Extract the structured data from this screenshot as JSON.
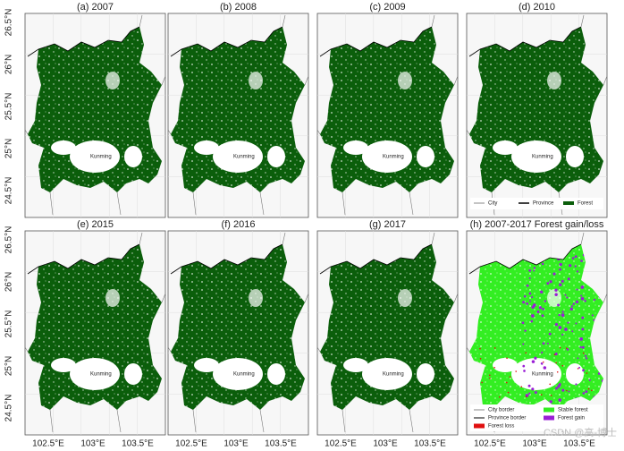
{
  "panels": [
    {
      "title": "(a) 2007"
    },
    {
      "title": "(b) 2008"
    },
    {
      "title": "(c) 2009"
    },
    {
      "title": "(d) 2010"
    },
    {
      "title": "(e) 2015"
    },
    {
      "title": "(f) 2016"
    },
    {
      "title": "(g) 2017"
    },
    {
      "title": "(h) 2007-2017 Forest gain/loss"
    }
  ],
  "lat_labels": [
    "26.5°N",
    "26°N",
    "25.5°N",
    "25°N",
    "24.5°N"
  ],
  "lon_labels": [
    "102.5°E",
    "103°E",
    "103.5°E"
  ],
  "city_label": "Kunming",
  "legend_forest": {
    "items": [
      "City",
      "Province",
      "Forest"
    ]
  },
  "legend_change": {
    "items": [
      "City border",
      "Stable forest",
      "Province border",
      "Forest gain",
      "Forest loss"
    ]
  },
  "watermark": "CSDN @高-博士"
}
